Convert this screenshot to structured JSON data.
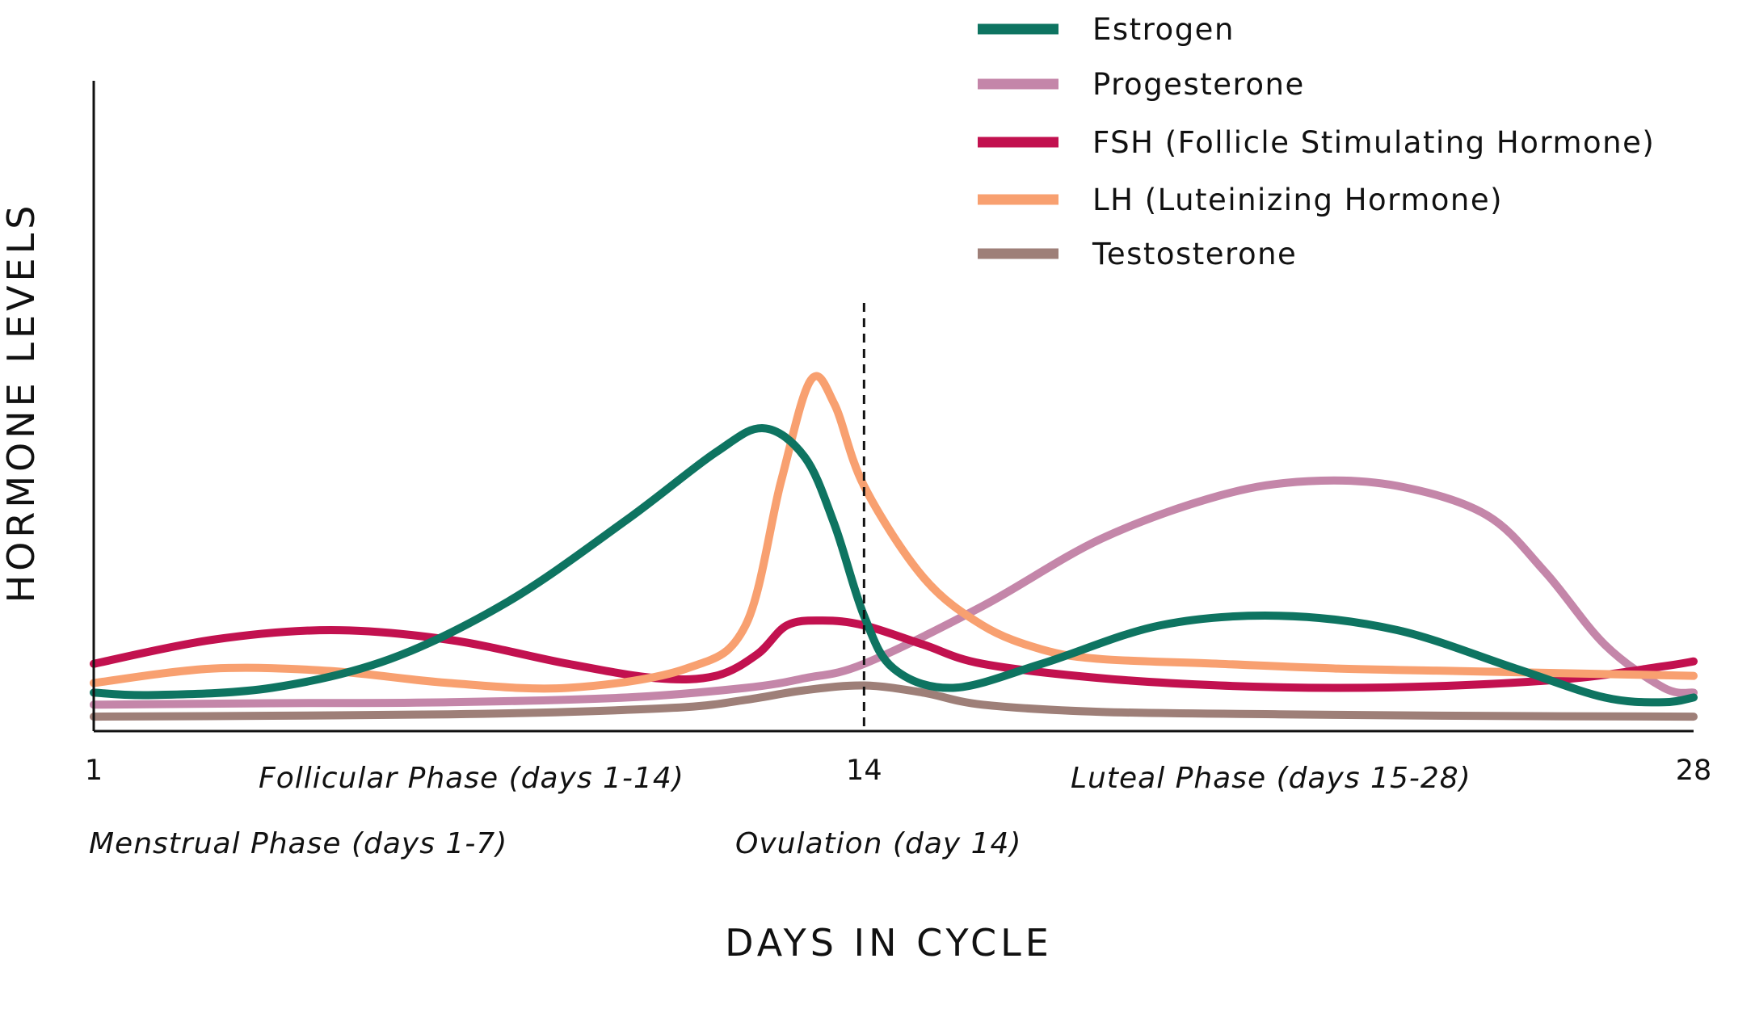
{
  "chart_data": {
    "type": "line",
    "xlabel": "DAYS IN CYCLE",
    "ylabel": "HORMONE LEVELS",
    "xlim": [
      1,
      28
    ],
    "ylim": [
      0,
      100
    ],
    "x_ticks": [
      "1",
      "14",
      "28"
    ],
    "grid": false,
    "legend_position": "top-right",
    "reference_line": {
      "x": 14,
      "style": "dashed"
    },
    "annotations": [
      {
        "text": "Follicular Phase (days 1-14)",
        "x": 7.5
      },
      {
        "text": "Luteal Phase (days 15-28)",
        "x": 21.5
      },
      {
        "text": "Menstrual Phase (days 1-7)",
        "x": 5
      },
      {
        "text": "Ovulation (day 14)",
        "x": 14
      }
    ],
    "series": [
      {
        "name": "Estrogen",
        "color": "#0E7461",
        "points": [
          [
            1,
            8
          ],
          [
            2,
            7.5
          ],
          [
            4,
            9
          ],
          [
            6,
            15
          ],
          [
            8,
            27
          ],
          [
            10,
            44
          ],
          [
            11.5,
            58
          ],
          [
            12.3,
            63
          ],
          [
            13,
            57
          ],
          [
            13.5,
            43
          ],
          [
            14,
            24
          ],
          [
            14.5,
            13
          ],
          [
            15.5,
            9
          ],
          [
            17,
            14
          ],
          [
            19,
            22
          ],
          [
            21,
            24
          ],
          [
            23,
            21
          ],
          [
            25,
            13
          ],
          [
            26.5,
            7
          ],
          [
            27.5,
            6
          ],
          [
            28,
            7
          ]
        ]
      },
      {
        "name": "Progesterone",
        "color": "#C486A9",
        "points": [
          [
            1,
            5.5
          ],
          [
            4,
            5.8
          ],
          [
            7,
            6
          ],
          [
            10,
            7
          ],
          [
            12,
            9
          ],
          [
            13,
            11
          ],
          [
            14,
            14
          ],
          [
            16,
            26
          ],
          [
            18,
            40
          ],
          [
            20,
            49
          ],
          [
            21.5,
            52
          ],
          [
            23,
            51
          ],
          [
            24.5,
            45
          ],
          [
            25.5,
            33
          ],
          [
            26.5,
            18
          ],
          [
            27.5,
            9
          ],
          [
            28,
            8
          ]
        ]
      },
      {
        "name": "FSH (Follicle Stimulating Hormone)",
        "color": "#C2114F",
        "points": [
          [
            1,
            14
          ],
          [
            3,
            19
          ],
          [
            5,
            21
          ],
          [
            7,
            19
          ],
          [
            9,
            14
          ],
          [
            10.5,
            11
          ],
          [
            11.5,
            11.5
          ],
          [
            12.2,
            16
          ],
          [
            12.7,
            22
          ],
          [
            13.3,
            23
          ],
          [
            14,
            22
          ],
          [
            15,
            18
          ],
          [
            16,
            14
          ],
          [
            18,
            11
          ],
          [
            20,
            9.5
          ],
          [
            22,
            9
          ],
          [
            24,
            9.5
          ],
          [
            26,
            11
          ],
          [
            27.5,
            13.5
          ],
          [
            28,
            14.5
          ]
        ]
      },
      {
        "name": "LH (Luteinizing Hormone)",
        "color": "#F8A070",
        "points": [
          [
            1,
            10
          ],
          [
            3,
            13
          ],
          [
            5,
            12.5
          ],
          [
            7,
            10
          ],
          [
            9,
            9
          ],
          [
            11,
            13
          ],
          [
            12,
            22
          ],
          [
            12.6,
            52
          ],
          [
            13.1,
            73
          ],
          [
            13.5,
            68
          ],
          [
            14,
            51
          ],
          [
            15,
            32
          ],
          [
            16,
            22
          ],
          [
            17,
            17
          ],
          [
            18,
            15
          ],
          [
            20,
            14
          ],
          [
            22,
            13
          ],
          [
            24,
            12.5
          ],
          [
            26,
            12
          ],
          [
            28,
            11.5
          ]
        ]
      },
      {
        "name": "Testosterone",
        "color": "#9E7F78",
        "points": [
          [
            1,
            3
          ],
          [
            4,
            3.2
          ],
          [
            7,
            3.5
          ],
          [
            9,
            4
          ],
          [
            11,
            5
          ],
          [
            12,
            6.5
          ],
          [
            13,
            8.5
          ],
          [
            14,
            9.5
          ],
          [
            15,
            8
          ],
          [
            16,
            5.5
          ],
          [
            18,
            4
          ],
          [
            21,
            3.5
          ],
          [
            24,
            3.2
          ],
          [
            28,
            3
          ]
        ]
      }
    ]
  }
}
